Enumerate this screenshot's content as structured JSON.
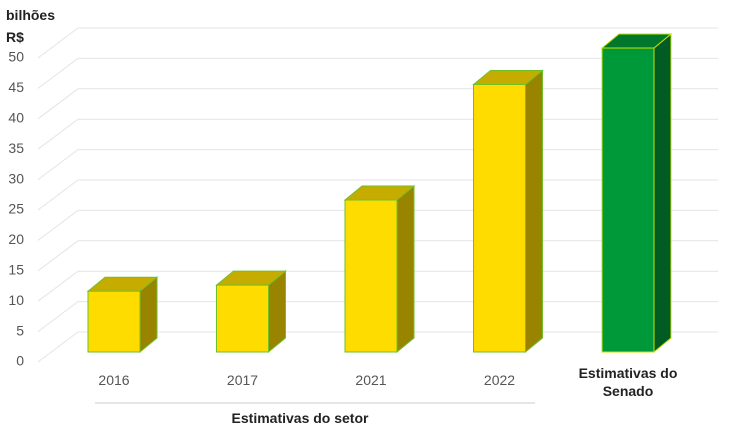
{
  "chart_data": {
    "type": "bar3d",
    "y_axis_label": "bilhões R$",
    "group_label": "Estimativas do setor",
    "categories": [
      "2016",
      "2017",
      "2021",
      "2022",
      "Estimativas do Senado"
    ],
    "values": [
      10,
      11,
      25,
      44,
      50
    ],
    "colors": [
      "#ffdc00",
      "#ffdc00",
      "#ffdc00",
      "#ffdc00",
      "#00993a"
    ],
    "ylim": [
      0,
      50
    ],
    "yticks": [
      0,
      5,
      10,
      15,
      20,
      25,
      30,
      35,
      40,
      45,
      50
    ],
    "grid": true
  }
}
